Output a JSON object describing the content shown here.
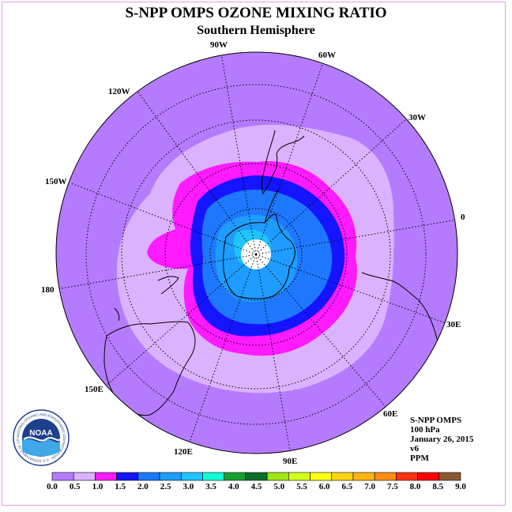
{
  "title": "S-NPP OMPS OZONE MIXING RATIO",
  "subtitle": "Southern Hemisphere",
  "map": {
    "projection": "polar stereographic, south pole",
    "longitude_labels": [
      "90W",
      "60W",
      "30W",
      "0",
      "30E",
      "60E",
      "90E",
      "120E",
      "150E",
      "180",
      "150W",
      "120W"
    ]
  },
  "info": {
    "instrument": "S-NPP OMPS",
    "level": "100 hPa",
    "date": "January 26, 2015",
    "version": "v6",
    "units": "PPM"
  },
  "logo": {
    "text": "NOAA",
    "ring_text": "NATIONAL OCEANIC AND ATMOSPHERIC ADMINISTRATION · U.S. DEPARTMENT OF COMMERCE"
  },
  "colorbar": {
    "ticks": [
      "0.0",
      "0.5",
      "1.0",
      "1.5",
      "2.0",
      "2.5",
      "3.0",
      "3.5",
      "4.0",
      "4.5",
      "5.0",
      "5.5",
      "6.0",
      "6.5",
      "7.0",
      "7.5",
      "8.0",
      "8.5",
      "9.0"
    ],
    "colors": [
      "#b57bff",
      "#dbb2ff",
      "#ff1aff",
      "#1414ff",
      "#1e78ff",
      "#1e9cff",
      "#1ec4ff",
      "#14ffd7",
      "#16a032",
      "#0a6e28",
      "#a0e614",
      "#d2ff1e",
      "#ffff14",
      "#ffd214",
      "#ffb414",
      "#ff8c14",
      "#ff3214",
      "#ff0000",
      "#8c5a32"
    ]
  }
}
